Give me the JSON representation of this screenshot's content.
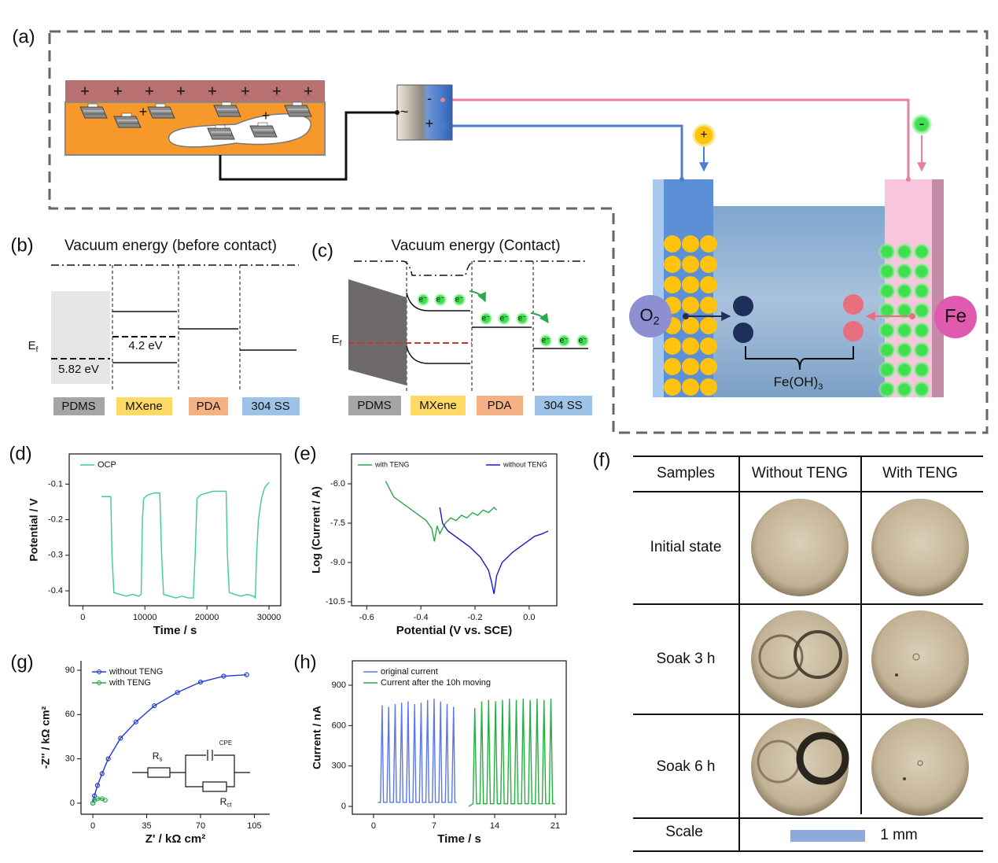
{
  "panel_labels": {
    "a": "(a)",
    "b": "(b)",
    "c": "(c)",
    "d": "(d)",
    "e": "(e)",
    "f": "(f)",
    "g": "(g)",
    "h": "(h)"
  },
  "teng": {
    "top_charges": [
      "+",
      "+",
      "+",
      "+",
      "+",
      "+",
      "+",
      "+"
    ],
    "inner_charges": [
      "+",
      "+"
    ]
  },
  "power_source": {
    "negative": "-",
    "symbol": "~",
    "positive": "+"
  },
  "cell": {
    "anode_sign": "+",
    "cathode_sign": "-",
    "oxygen": {
      "main": "O",
      "sub": "2"
    },
    "iron": "Fe",
    "product": {
      "main": "Fe(OH)",
      "sub": "3"
    }
  },
  "before_contact": {
    "title": "Vacuum energy (before contact)",
    "fermi": {
      "main": "E",
      "sub": "f"
    },
    "gaps": [
      "5.82 eV",
      "4.2 eV"
    ],
    "materials": [
      "PDMS",
      "MXene",
      "PDA",
      "304 SS"
    ]
  },
  "contact": {
    "title": "Vacuum energy (Contact)",
    "fermi": {
      "main": "E",
      "sub": "f"
    },
    "electrons": [
      [
        "e⁻",
        "e⁻",
        "e⁻"
      ],
      [
        "e⁻",
        "e⁻",
        "e⁻"
      ],
      [
        "e⁻",
        "e⁻",
        "e⁻"
      ]
    ],
    "materials": [
      "PDMS",
      "MXene",
      "PDA",
      "304 SS"
    ]
  },
  "sample_table": {
    "header": [
      "Samples",
      "Without TENG",
      "With TENG"
    ],
    "rows": [
      "Initial state",
      "Soak 3 h",
      "Soak 6 h"
    ],
    "scale": {
      "label": "Scale",
      "bar": "1 mm"
    }
  },
  "chart_data": [
    {
      "type": "line",
      "x_label": "Time / s",
      "y_label": "Potential / V",
      "xlim": [
        -2200,
        31900
      ],
      "ylim": [
        -0.442,
        -0.015
      ],
      "xticks": [
        0,
        10000,
        20000,
        30000
      ],
      "yticks": [
        -0.1,
        -0.2,
        -0.3,
        -0.4
      ],
      "legend": "upper left",
      "series": [
        {
          "name": "OCP",
          "color": "#3dcc8a",
          "x": [
            3000,
            4500,
            4700,
            5000,
            6000,
            7000,
            8000,
            9000,
            9400,
            9600,
            9800,
            10500,
            11500,
            12400,
            12700,
            13000,
            14000,
            15000,
            16000,
            17000,
            17800,
            18100,
            18400,
            19000,
            20000,
            21000,
            22500,
            23100,
            23300,
            23600,
            24500,
            25500,
            26500,
            27500,
            27800,
            28000,
            28300,
            28800,
            29300,
            30000
          ],
          "values": [
            -0.135,
            -0.135,
            -0.3,
            -0.405,
            -0.41,
            -0.415,
            -0.41,
            -0.415,
            -0.41,
            -0.2,
            -0.14,
            -0.13,
            -0.125,
            -0.125,
            -0.3,
            -0.41,
            -0.415,
            -0.42,
            -0.415,
            -0.42,
            -0.42,
            -0.3,
            -0.14,
            -0.13,
            -0.125,
            -0.12,
            -0.12,
            -0.12,
            -0.3,
            -0.405,
            -0.41,
            -0.415,
            -0.41,
            -0.415,
            -0.42,
            -0.3,
            -0.2,
            -0.14,
            -0.11,
            -0.095
          ]
        }
      ]
    },
    {
      "type": "line",
      "x_label": "Potential (V vs. SCE)",
      "y_label": "Log (Current / A)",
      "xlim": [
        -0.656,
        0.102
      ],
      "ylim": [
        -10.65,
        -4.86
      ],
      "xticks": [
        -0.6,
        -0.4,
        -0.2,
        {
          "value": 0,
          "label": "0.0"
        }
      ],
      "yticks": [
        {
          "value": -6,
          "label": "-6.0"
        },
        -7.5,
        {
          "value": -9,
          "label": "-9.0"
        },
        -10.5
      ],
      "legend": "top",
      "series": [
        {
          "name": "with TENG",
          "color": "#2aa84a",
          "x": [
            -0.53,
            -0.5,
            -0.46,
            -0.42,
            -0.38,
            -0.36,
            -0.35,
            -0.34,
            -0.33,
            -0.31,
            -0.29,
            -0.27,
            -0.25,
            -0.23,
            -0.21,
            -0.19,
            -0.17,
            -0.15,
            -0.13,
            -0.12
          ],
          "values": [
            -5.9,
            -6.5,
            -6.8,
            -7.1,
            -7.4,
            -7.7,
            -8.2,
            -7.6,
            -7.9,
            -7.5,
            -7.3,
            -7.4,
            -7.2,
            -7.3,
            -7.1,
            -7.2,
            -7.0,
            -7.1,
            -6.9,
            -7.0
          ]
        },
        {
          "name": "without TENG",
          "color": "#1a1ac8",
          "x": [
            -0.33,
            -0.32,
            -0.3,
            -0.26,
            -0.22,
            -0.18,
            -0.15,
            -0.14,
            -0.13,
            -0.12,
            -0.1,
            -0.06,
            -0.02,
            0.02,
            0.05,
            0.07
          ],
          "values": [
            -6.9,
            -7.5,
            -7.8,
            -8.1,
            -8.4,
            -8.8,
            -9.3,
            -9.7,
            -10.2,
            -9.5,
            -9.0,
            -8.6,
            -8.3,
            -8.0,
            -7.9,
            -7.8
          ]
        }
      ]
    },
    {
      "type": "line",
      "markers": true,
      "x_label": "Z' /  kΩ cm²",
      "y_label": "-Z'' / kΩ cm²",
      "xlim": [
        -7.7,
        115
      ],
      "ylim": [
        -7.5,
        96.4
      ],
      "xticks": [
        0,
        35,
        70,
        105
      ],
      "yticks": [
        0,
        30,
        60,
        90
      ],
      "legend": "upper left",
      "annotations": {
        "rs": {
          "main": "R",
          "sub": "s"
        },
        "cpe": "CPE",
        "rct": {
          "main": "R",
          "sub": "ct"
        }
      },
      "series": [
        {
          "name": "without TENG",
          "color": "#1f3bd6",
          "x": [
            0,
            1,
            3,
            6,
            10,
            18,
            28,
            40,
            55,
            70,
            85,
            100
          ],
          "values": [
            0,
            5,
            12,
            20,
            30,
            44,
            55,
            66,
            75,
            82,
            86,
            87
          ]
        },
        {
          "name": "with TENG",
          "color": "#2ca84a",
          "x": [
            0,
            1,
            3,
            6,
            8
          ],
          "values": [
            0,
            2,
            3,
            3,
            2
          ]
        }
      ]
    },
    {
      "type": "line",
      "x_label": "Time / s",
      "y_label": "Current / nA",
      "xlim": [
        -2.45,
        22.27
      ],
      "ylim": [
        -58,
        1081
      ],
      "xticks": [
        0,
        7,
        14,
        21
      ],
      "yticks": [
        0,
        300,
        600,
        900
      ],
      "legend": "upper left",
      "series": [
        {
          "name": "original current",
          "color": "#5a78e8",
          "x": [
            0.5,
            0.8,
            1.0,
            1.15,
            1.55,
            1.75,
            1.9,
            2.3,
            2.5,
            2.65,
            3.05,
            3.25,
            3.4,
            3.8,
            4.0,
            4.15,
            4.55,
            4.75,
            4.9,
            5.3,
            5.5,
            5.65,
            6.05,
            6.25,
            6.4,
            6.8,
            7.0,
            7.15,
            7.55,
            7.75,
            7.9,
            8.3,
            8.5,
            8.65,
            9.05,
            9.25,
            9.4,
            9.6
          ],
          "values": [
            30,
            30,
            750,
            30,
            30,
            740,
            30,
            30,
            760,
            30,
            30,
            770,
            30,
            30,
            780,
            30,
            30,
            760,
            30,
            30,
            770,
            30,
            30,
            790,
            30,
            30,
            800,
            30,
            30,
            780,
            30,
            30,
            760,
            30,
            30,
            740,
            30,
            30
          ]
        },
        {
          "name": "Current after the 10h moving",
          "color": "#22b040",
          "x": [
            11.0,
            11.5,
            11.7,
            11.9,
            12.3,
            12.5,
            12.7,
            13.1,
            13.3,
            13.5,
            13.9,
            14.1,
            14.3,
            14.7,
            14.9,
            15.1,
            15.5,
            15.7,
            15.9,
            16.3,
            16.5,
            16.7,
            17.1,
            17.3,
            17.5,
            17.9,
            18.1,
            18.3,
            18.7,
            18.9,
            19.1,
            19.5,
            19.7,
            19.9,
            20.3,
            20.5,
            20.7,
            21.0
          ],
          "values": [
            0,
            20,
            730,
            20,
            20,
            780,
            20,
            20,
            790,
            20,
            20,
            780,
            20,
            20,
            790,
            20,
            20,
            800,
            20,
            20,
            790,
            20,
            20,
            800,
            20,
            20,
            790,
            20,
            20,
            800,
            20,
            20,
            790,
            20,
            20,
            800,
            20,
            20
          ]
        }
      ]
    }
  ]
}
